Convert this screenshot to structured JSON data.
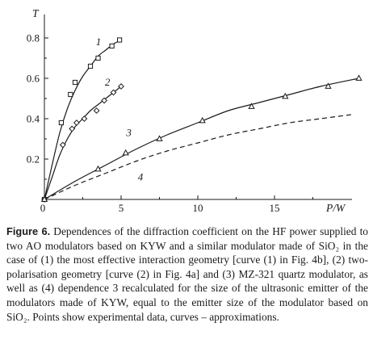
{
  "chart_data": {
    "type": "scatter",
    "xlabel": "P/W",
    "ylabel": "T",
    "xlim": [
      0,
      20.5
    ],
    "ylim": [
      0,
      0.9
    ],
    "xticks": [
      0,
      5,
      10,
      15
    ],
    "yticks": [
      0.2,
      0.4,
      0.6,
      0.8
    ],
    "grid": false,
    "series": [
      {
        "name": "1",
        "marker": "square",
        "line": "solid",
        "points": [
          [
            0,
            0
          ],
          [
            1.1,
            0.38
          ],
          [
            1.7,
            0.52
          ],
          [
            2.0,
            0.58
          ],
          [
            3.0,
            0.66
          ],
          [
            3.5,
            0.7
          ],
          [
            4.4,
            0.76
          ],
          [
            4.9,
            0.79
          ]
        ],
        "fit": [
          [
            0,
            0
          ],
          [
            0.5,
            0.17
          ],
          [
            1.0,
            0.33
          ],
          [
            1.5,
            0.45
          ],
          [
            2.0,
            0.54
          ],
          [
            2.5,
            0.61
          ],
          [
            3.0,
            0.66
          ],
          [
            3.5,
            0.71
          ],
          [
            4.0,
            0.74
          ],
          [
            4.5,
            0.77
          ],
          [
            5.0,
            0.79
          ]
        ]
      },
      {
        "name": "2",
        "marker": "diamond",
        "line": "solid",
        "points": [
          [
            0,
            0
          ],
          [
            1.2,
            0.27
          ],
          [
            1.8,
            0.35
          ],
          [
            2.1,
            0.38
          ],
          [
            2.6,
            0.4
          ],
          [
            3.4,
            0.44
          ],
          [
            3.9,
            0.49
          ],
          [
            4.5,
            0.53
          ],
          [
            5.0,
            0.56
          ]
        ],
        "fit": [
          [
            0,
            0
          ],
          [
            0.5,
            0.11
          ],
          [
            1.0,
            0.22
          ],
          [
            1.5,
            0.3
          ],
          [
            2.0,
            0.36
          ],
          [
            2.5,
            0.4
          ],
          [
            3.0,
            0.44
          ],
          [
            3.5,
            0.47
          ],
          [
            4.0,
            0.5
          ],
          [
            4.5,
            0.53
          ],
          [
            5.0,
            0.56
          ]
        ]
      },
      {
        "name": "3",
        "marker": "triangle",
        "line": "solid",
        "points": [
          [
            0,
            0
          ],
          [
            3.5,
            0.15
          ],
          [
            5.3,
            0.23
          ],
          [
            7.5,
            0.3
          ],
          [
            10.3,
            0.39
          ],
          [
            13.5,
            0.46
          ],
          [
            15.7,
            0.51
          ],
          [
            18.5,
            0.56
          ],
          [
            20.5,
            0.6
          ]
        ],
        "fit": [
          [
            0,
            0
          ],
          [
            2,
            0.09
          ],
          [
            4,
            0.17
          ],
          [
            6,
            0.25
          ],
          [
            8,
            0.32
          ],
          [
            10,
            0.38
          ],
          [
            12,
            0.44
          ],
          [
            14,
            0.48
          ],
          [
            16,
            0.52
          ],
          [
            18,
            0.56
          ],
          [
            20.5,
            0.6
          ]
        ]
      },
      {
        "name": "4",
        "marker": "none",
        "line": "dashed",
        "points": [],
        "fit": [
          [
            0,
            0
          ],
          [
            2,
            0.07
          ],
          [
            4,
            0.13
          ],
          [
            6,
            0.19
          ],
          [
            8,
            0.24
          ],
          [
            10,
            0.28
          ],
          [
            12,
            0.32
          ],
          [
            14,
            0.35
          ],
          [
            16,
            0.38
          ],
          [
            18,
            0.4
          ],
          [
            20,
            0.42
          ]
        ]
      }
    ]
  },
  "caption": {
    "label": "Figure 6.",
    "text": "Dependences of the diffraction coefficient on the HF power supplied to two AO modulators based on KYW and a similar modulator made of SiO₂ in the case of (1) the most effective interaction geometry [curve (1) in Fig. 4b], (2) two-polarisation geometry [curve (2) in Fig. 4a] and (3) MZ-321 quartz modulator, as well as (4) dependence 3 recalculated for the size of the ultrasonic emitter of the modulators made of KYW, equal to the emitter size of the modulator based on SiO₂. Points show experimental data, curves – approximations."
  },
  "style": {
    "ink": "#1a1a1a",
    "background": "#ffffff"
  }
}
